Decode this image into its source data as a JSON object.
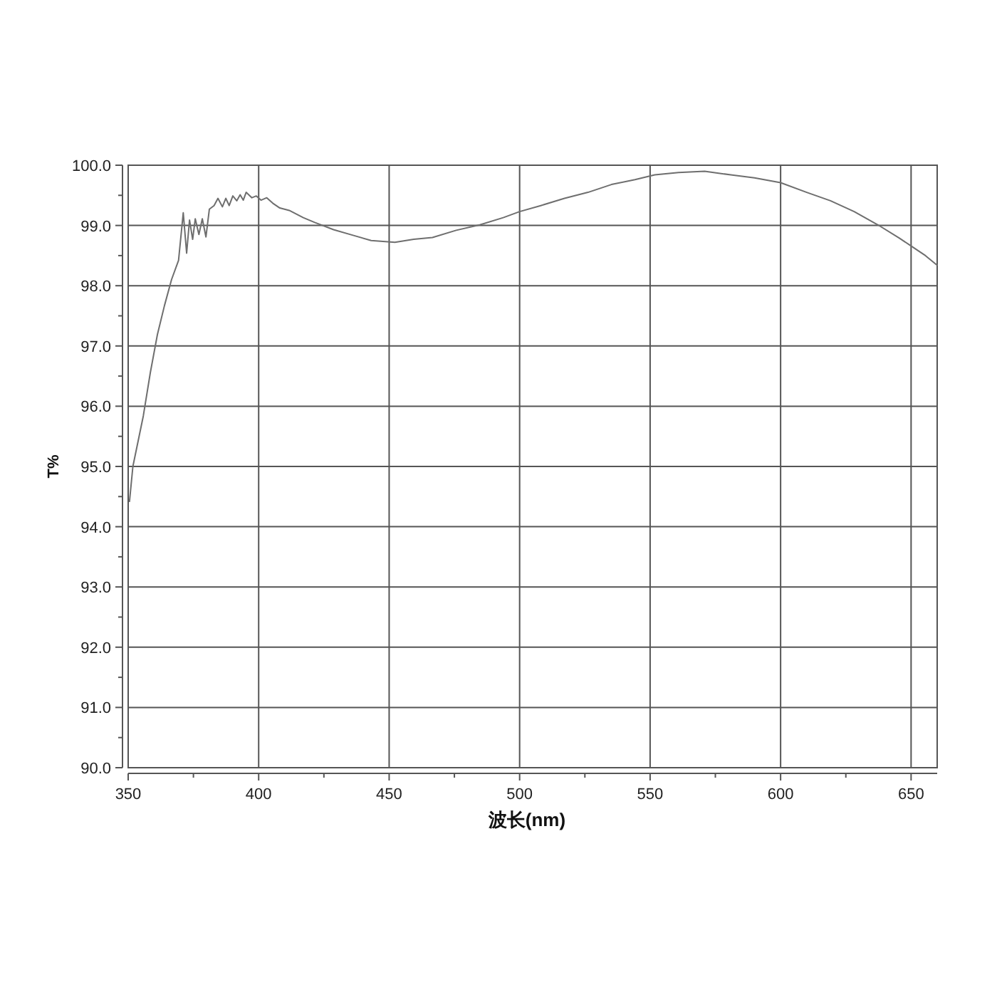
{
  "chart_data": {
    "type": "line",
    "xlabel": "波长(nm)",
    "ylabel": "T%",
    "x": [
      350.5,
      351.8,
      355.8,
      358.5,
      361.2,
      363.9,
      366.6,
      369.3,
      371.1,
      372.4,
      373.5,
      374.7,
      375.7,
      377.1,
      378.4,
      379.8,
      381.1,
      382.9,
      384.4,
      386.1,
      387.4,
      388.7,
      390.1,
      391.6,
      392.9,
      394.1,
      395.2,
      397.4,
      399.1,
      400.9,
      403.1,
      405.4,
      408.1,
      411.7,
      417.1,
      421.5,
      428.7,
      435.9,
      443.1,
      452.2,
      459.4,
      466.6,
      475.7,
      484.7,
      493.7,
      500,
      508.1,
      517.2,
      526.2,
      535.2,
      544.2,
      551.8,
      560.9,
      570.9,
      580.9,
      590,
      600,
      610,
      619.1,
      628.2,
      637.3,
      645.5,
      650,
      655.5,
      660
    ],
    "values": [
      94.42,
      95.0,
      95.84,
      96.56,
      97.19,
      97.67,
      98.1,
      98.42,
      99.21,
      98.54,
      99.09,
      98.77,
      99.11,
      98.85,
      99.11,
      98.81,
      99.27,
      99.33,
      99.45,
      99.31,
      99.45,
      99.33,
      99.49,
      99.41,
      99.51,
      99.42,
      99.55,
      99.46,
      99.49,
      99.42,
      99.46,
      99.37,
      99.29,
      99.25,
      99.13,
      99.05,
      98.93,
      98.84,
      98.75,
      98.72,
      98.77,
      98.8,
      98.92,
      99.01,
      99.13,
      99.23,
      99.33,
      99.45,
      99.55,
      99.68,
      99.76,
      99.84,
      99.88,
      99.9,
      99.84,
      99.79,
      99.71,
      99.55,
      99.41,
      99.23,
      99.01,
      98.79,
      98.66,
      98.5,
      98.34
    ],
    "color": "#6e6e6e",
    "xlim": [
      350,
      660
    ],
    "ylim": [
      90,
      100
    ],
    "xticks": [
      350,
      {
        "value": 375,
        "label": null
      },
      400,
      {
        "value": 425,
        "label": null
      },
      450,
      {
        "value": 475,
        "label": null
      },
      500,
      {
        "value": 525,
        "label": null
      },
      550,
      {
        "value": 575,
        "label": null
      },
      600,
      {
        "value": 625,
        "label": null
      },
      650
    ],
    "yticks": [
      {
        "value": 90,
        "label": "90.0"
      },
      {
        "value": 90.5,
        "label": null
      },
      {
        "value": 91,
        "label": "91.0"
      },
      {
        "value": 91.5,
        "label": null
      },
      {
        "value": 92,
        "label": "92.0"
      },
      {
        "value": 92.5,
        "label": null
      },
      {
        "value": 93,
        "label": "93.0"
      },
      {
        "value": 93.5,
        "label": null
      },
      {
        "value": 94,
        "label": "94.0"
      },
      {
        "value": 94.5,
        "label": null
      },
      {
        "value": 95,
        "label": "95.0"
      },
      {
        "value": 95.5,
        "label": null
      },
      {
        "value": 96,
        "label": "96.0"
      },
      {
        "value": 96.5,
        "label": null
      },
      {
        "value": 97,
        "label": "97.0"
      },
      {
        "value": 97.5,
        "label": null
      },
      {
        "value": 98,
        "label": "98.0"
      },
      {
        "value": 98.5,
        "label": null
      },
      {
        "value": 99,
        "label": "99.0"
      },
      {
        "value": 99.5,
        "label": null
      },
      {
        "value": 100,
        "label": "100.0"
      }
    ],
    "grid": true
  }
}
